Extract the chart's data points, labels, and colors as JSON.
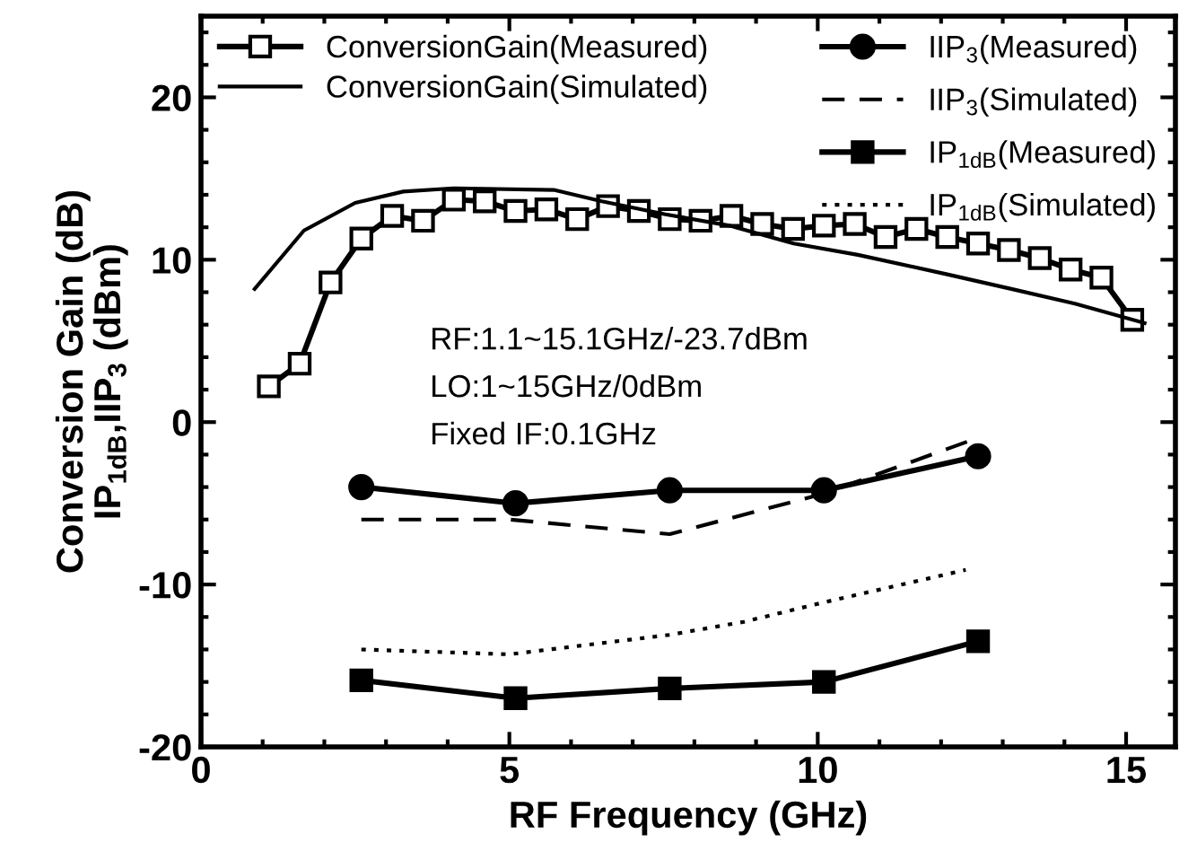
{
  "chart_data": {
    "type": "line",
    "xlabel": "RF Frequency (GHz)",
    "ylabel": "Conversion Gain (dB)\nIP$_{1dB}$,IIP$_{3}$ (dBm)",
    "xlim": [
      0,
      15.8
    ],
    "xticks": [
      0,
      5,
      10,
      15
    ],
    "ylim": [
      -20,
      25
    ],
    "yticks": [
      -20,
      -10,
      0,
      10,
      20
    ],
    "grid": false,
    "legend": "top",
    "annotations": [
      "RF:1.1~15.1GHz/-23.7dBm",
      "LO:1~15GHz/0dBm",
      "Fixed IF:0.1GHz"
    ],
    "series": [
      {
        "name": "ConversionGain(Measured)",
        "color": "#000000",
        "marker": "square",
        "line_style": "solid",
        "x": [
          1.1,
          1.6,
          2.1,
          2.6,
          3.1,
          3.6,
          4.1,
          4.6,
          5.1,
          5.6,
          6.1,
          6.6,
          7.1,
          7.6,
          8.1,
          8.6,
          9.1,
          9.6,
          10.1,
          10.6,
          11.1,
          11.6,
          12.1,
          12.6,
          13.1,
          13.6,
          14.1,
          14.6,
          15.1
        ],
        "values": [
          2.2,
          3.6,
          8.6,
          11.3,
          12.7,
          12.4,
          13.7,
          13.6,
          13.0,
          13.1,
          12.5,
          13.3,
          13.0,
          12.5,
          12.4,
          12.7,
          12.2,
          11.9,
          12.1,
          12.2,
          11.4,
          11.9,
          11.4,
          11.0,
          10.6,
          10.1,
          9.4,
          8.9,
          6.3
        ]
      },
      {
        "name": "ConversionGain(Simulated)",
        "color": "#000000",
        "marker": "none",
        "line_style": "solid",
        "x": [
          0.87,
          1.67,
          2.5,
          3.28,
          4.09,
          5.72,
          6.5,
          7.53,
          8.57,
          9.61,
          10.65,
          12.1,
          13.14,
          14.17,
          15.3
        ],
        "values": [
          8.2,
          11.8,
          13.5,
          14.2,
          14.4,
          14.3,
          13.6,
          12.8,
          12.1,
          11.0,
          10.3,
          9.1,
          8.2,
          7.3,
          6.1
        ]
      },
      {
        "name": "IIP$_{3}$(Measured)",
        "color": "#000000",
        "marker": "circle",
        "line_style": "solid",
        "x": [
          2.6,
          5.1,
          7.6,
          10.1,
          12.6
        ],
        "values": [
          -4.0,
          -5.0,
          -4.2,
          -4.2,
          -2.1
        ]
      },
      {
        "name": "IIP$_{3}$(Simulated)",
        "color": "#000000",
        "marker": "none",
        "line_style": "dashed",
        "x": [
          2.6,
          5.0,
          7.6,
          10.1,
          12.5
        ],
        "values": [
          -6.0,
          -6.0,
          -6.9,
          -4.4,
          -1.1
        ]
      },
      {
        "name": "IP$_{1dB}$(Measured)",
        "color": "#000000",
        "marker": "square_filled",
        "line_style": "solid",
        "x": [
          2.6,
          5.1,
          7.6,
          10.1,
          12.6
        ],
        "values": [
          -15.9,
          -17.0,
          -16.4,
          -16.0,
          -13.5
        ]
      },
      {
        "name": "IP$_{1dB}$(Simulated)",
        "color": "#000000",
        "marker": "none",
        "line_style": "dotted",
        "x": [
          2.6,
          5.0,
          7.6,
          8.8,
          10.1,
          12.4
        ],
        "values": [
          -14.0,
          -14.3,
          -13.1,
          -12.3,
          -11.1,
          -9.1
        ]
      }
    ]
  }
}
